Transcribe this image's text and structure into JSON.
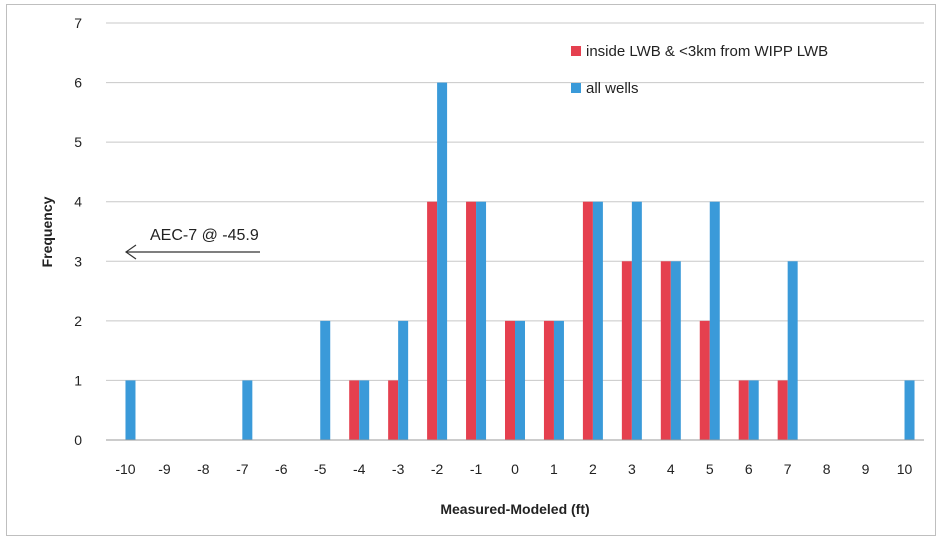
{
  "chart_data": {
    "type": "bar",
    "xlabel": "Measured-Modeled (ft)",
    "ylabel": "Frequency",
    "categories": [
      "-10",
      "-9",
      "-8",
      "-7",
      "-6",
      "-5",
      "-4",
      "-3",
      "-2",
      "-1",
      "0",
      "1",
      "2",
      "3",
      "4",
      "5",
      "6",
      "7",
      "8",
      "9",
      "10"
    ],
    "series": [
      {
        "name": "inside LWB & <3km from WIPP LWB",
        "color": "#e5404f",
        "values": [
          0,
          0,
          0,
          0,
          0,
          0,
          1,
          1,
          4,
          4,
          2,
          2,
          4,
          3,
          3,
          2,
          1,
          1,
          0,
          0,
          0
        ]
      },
      {
        "name": "all wells",
        "color": "#3a9ad9",
        "values": [
          1,
          0,
          0,
          1,
          0,
          2,
          1,
          2,
          6,
          4,
          2,
          2,
          4,
          4,
          3,
          4,
          1,
          3,
          0,
          0,
          1
        ]
      }
    ],
    "ylim": [
      0,
      7
    ],
    "yticks": [
      "0",
      "1",
      "2",
      "3",
      "4",
      "5",
      "6",
      "7"
    ],
    "grid": true,
    "legend_position": "top-right",
    "annotation": {
      "text": "AEC-7 @ -45.9",
      "arrow": "left"
    }
  }
}
